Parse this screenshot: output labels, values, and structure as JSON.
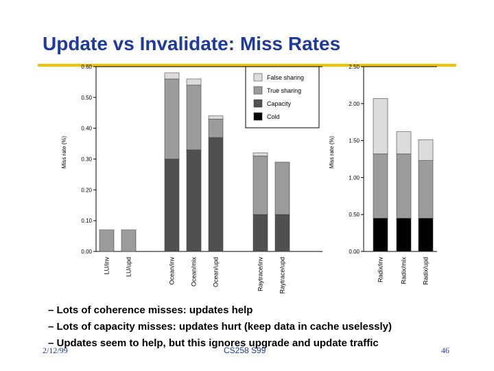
{
  "slide": {
    "title": "Update vs Invalidate: Miss Rates",
    "bullets": [
      "– Lots of coherence misses: updates help",
      "– Lots of capacity misses: updates hurt (keep data in cache uselessly)",
      "– Updates seem to help, but this ignores upgrade and update traffic"
    ],
    "footer": {
      "date": "2/12/99",
      "course": "CS258 S99",
      "page": "46"
    }
  },
  "colors": {
    "title": "#1f3a9e",
    "rule": "#f2c200",
    "false_sharing": "#dcdcdc",
    "true_sharing": "#9c9c9c",
    "capacity": "#505050",
    "cold": "#000000"
  },
  "chart_data": [
    {
      "type": "bar",
      "stacked": true,
      "title": "",
      "xlabel": "",
      "ylabel": "Miss rate (%)",
      "ylim": [
        0,
        0.6
      ],
      "yticks": [
        "0.00",
        "0.10",
        "0.20",
        "0.30",
        "0.40",
        "0.50",
        "0.60"
      ],
      "categories": [
        "LU/inv",
        "LU/upd",
        "Ocean/inv",
        "Ocean/mix",
        "Ocean/upd",
        "Raytrace/inv",
        "Raytrace/upd"
      ],
      "legend": {
        "position": "top-right",
        "entries": [
          "False sharing",
          "True sharing",
          "Capacity",
          "Cold"
        ]
      },
      "series": [
        {
          "name": "Cold",
          "values": [
            0.0,
            0.0,
            0.0,
            0.0,
            0.0,
            0.0,
            0.0
          ]
        },
        {
          "name": "Capacity",
          "values": [
            0.0,
            0.0,
            0.3,
            0.33,
            0.37,
            0.12,
            0.12
          ]
        },
        {
          "name": "True sharing",
          "values": [
            0.07,
            0.07,
            0.26,
            0.21,
            0.06,
            0.19,
            0.17
          ]
        },
        {
          "name": "False sharing",
          "values": [
            0.0,
            0.0,
            0.02,
            0.02,
            0.01,
            0.01,
            0.0
          ]
        }
      ]
    },
    {
      "type": "bar",
      "stacked": true,
      "title": "",
      "xlabel": "",
      "ylabel": "Miss rate (%)",
      "ylim": [
        0,
        2.5
      ],
      "yticks": [
        "0.00",
        "0.50",
        "1.00",
        "1.50",
        "2.00",
        "2.50"
      ],
      "categories": [
        "Radix/inv",
        "Radix/mix",
        "Radix/upd"
      ],
      "series": [
        {
          "name": "Cold",
          "values": [
            0.45,
            0.45,
            0.45
          ]
        },
        {
          "name": "Capacity",
          "values": [
            0.0,
            0.0,
            0.0
          ]
        },
        {
          "name": "True sharing",
          "values": [
            0.87,
            0.87,
            0.78
          ]
        },
        {
          "name": "False sharing",
          "values": [
            0.75,
            0.3,
            0.28
          ]
        }
      ]
    }
  ]
}
